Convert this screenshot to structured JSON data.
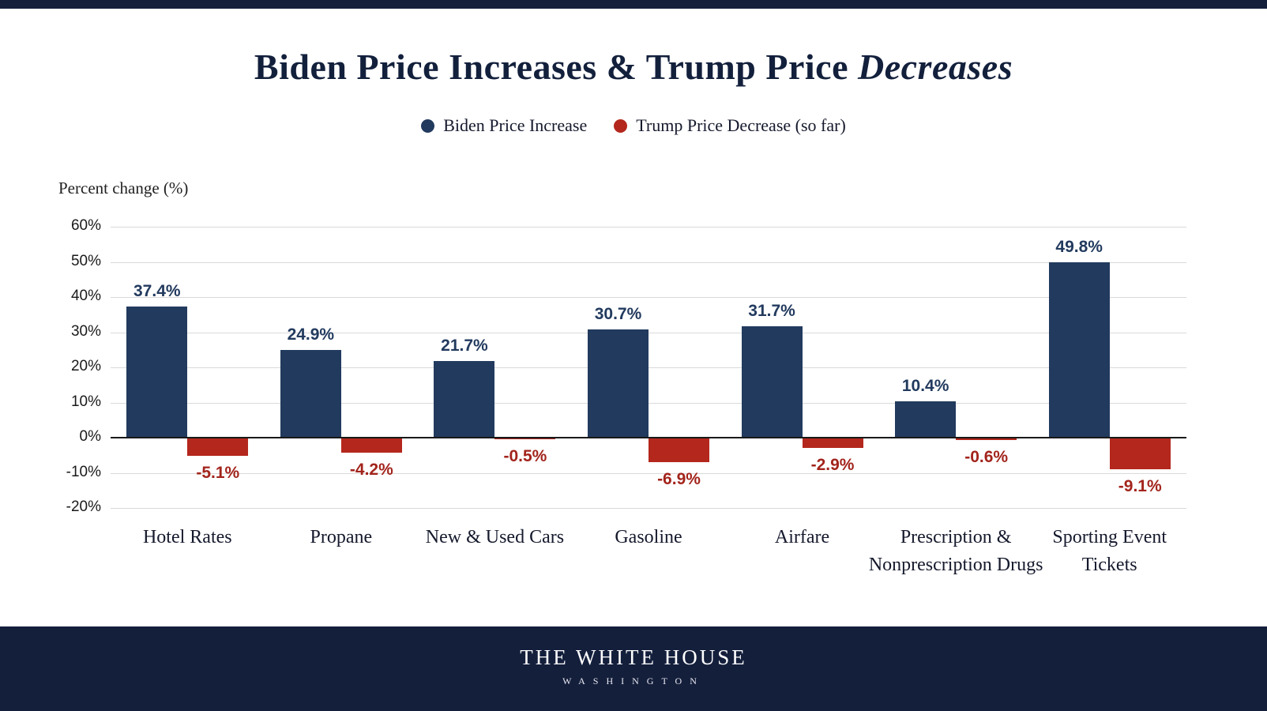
{
  "header": {
    "title_main": "Biden Price Increases & Trump Price ",
    "title_italic": "Decreases"
  },
  "chart_data": {
    "type": "bar",
    "title": "Biden Price Increases & Trump Price Decreases",
    "xlabel": "",
    "ylabel": "Percent change (%)",
    "categories": [
      "Hotel Rates",
      "Propane",
      "New & Used Cars",
      "Gasoline",
      "Airfare",
      "Prescription &\nNonprescription Drugs",
      "Sporting Event\nTickets"
    ],
    "series": [
      {
        "name": "Biden Price Increase",
        "color": "#223a5e",
        "values": [
          37.4,
          24.9,
          21.7,
          30.7,
          31.7,
          10.4,
          49.8
        ]
      },
      {
        "name": "Trump Price Decrease (so far)",
        "color": "#b4271d",
        "values": [
          -5.1,
          -4.2,
          -0.5,
          -6.9,
          -2.9,
          -0.6,
          -9.1
        ]
      }
    ],
    "value_labels": {
      "biden": [
        "37.4%",
        "24.9%",
        "21.7%",
        "30.7%",
        "31.7%",
        "10.4%",
        "49.8%"
      ],
      "trump": [
        "-5.1%",
        "-4.2%",
        "-0.5%",
        "-6.9%",
        "-2.9%",
        "-0.6%",
        "-9.1%"
      ]
    },
    "ylim": [
      -20,
      60
    ],
    "yticks": [
      60,
      50,
      40,
      30,
      20,
      10,
      0,
      -10,
      -20
    ],
    "ytick_labels": [
      "60%",
      "50%",
      "40%",
      "30%",
      "20%",
      "10%",
      "0%",
      "-10%",
      "-20%"
    ],
    "grid": true,
    "legend_position": "top"
  },
  "footer": {
    "line1": "THE WHITE HOUSE",
    "line2": "WASHINGTON"
  }
}
